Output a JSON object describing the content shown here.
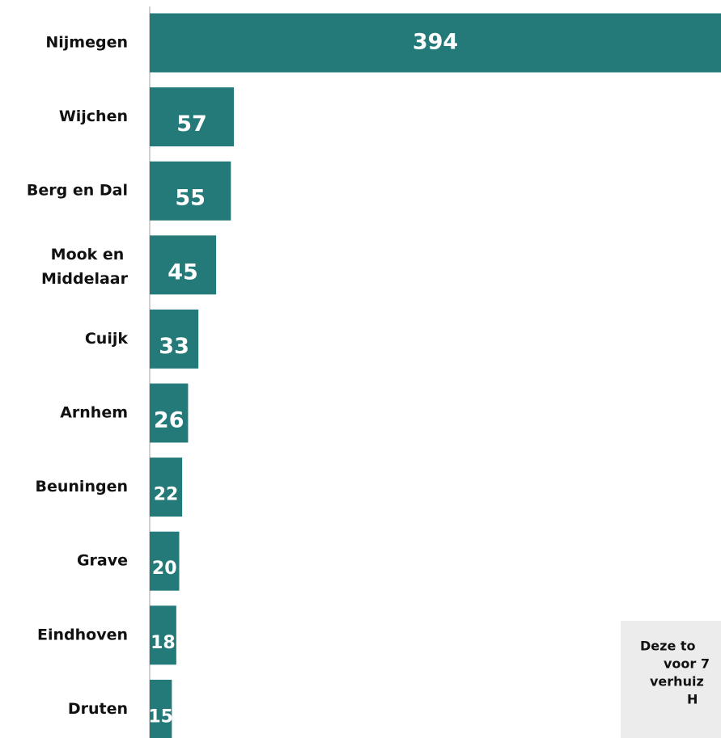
{
  "chart_data": {
    "type": "barh",
    "categories": [
      "Nijmegen",
      "Wijchen",
      "Berg en Dal",
      [
        "Mook en",
        "Middelaar"
      ],
      "Cuijk",
      "Arnhem",
      "Beuningen",
      "Grave",
      "Eindhoven",
      "Druten"
    ],
    "values": [
      394,
      57,
      55,
      45,
      33,
      26,
      22,
      20,
      18,
      15
    ],
    "color": "#237a78",
    "xlim": [
      0,
      387
    ],
    "annotation": [
      "Deze to",
      "voor 7",
      "verhuiz",
      "H"
    ]
  }
}
